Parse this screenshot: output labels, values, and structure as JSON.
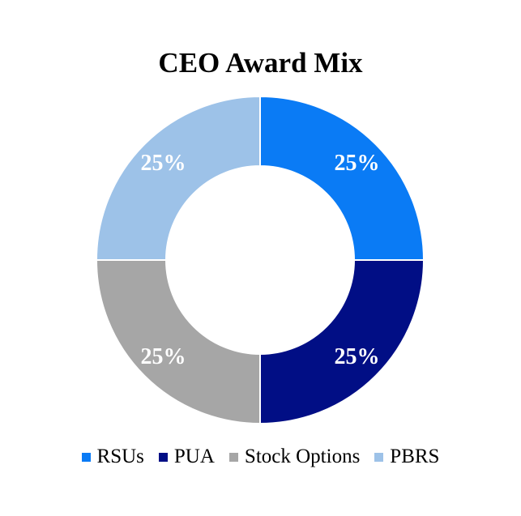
{
  "chart_data": {
    "type": "pie",
    "variant": "donut",
    "title": "CEO Award Mix",
    "slices": [
      {
        "label": "RSUs",
        "value": 25,
        "display": "25%",
        "color": "#0a7bf5"
      },
      {
        "label": "PUA",
        "value": 25,
        "display": "25%",
        "color": "#010e85"
      },
      {
        "label": "Stock Options",
        "value": 25,
        "display": "25%",
        "color": "#a6a6a6"
      },
      {
        "label": "PBRS",
        "value": 25,
        "display": "25%",
        "color": "#9dc2e8"
      }
    ],
    "legend_position": "bottom",
    "label_color": "#ffffff"
  }
}
